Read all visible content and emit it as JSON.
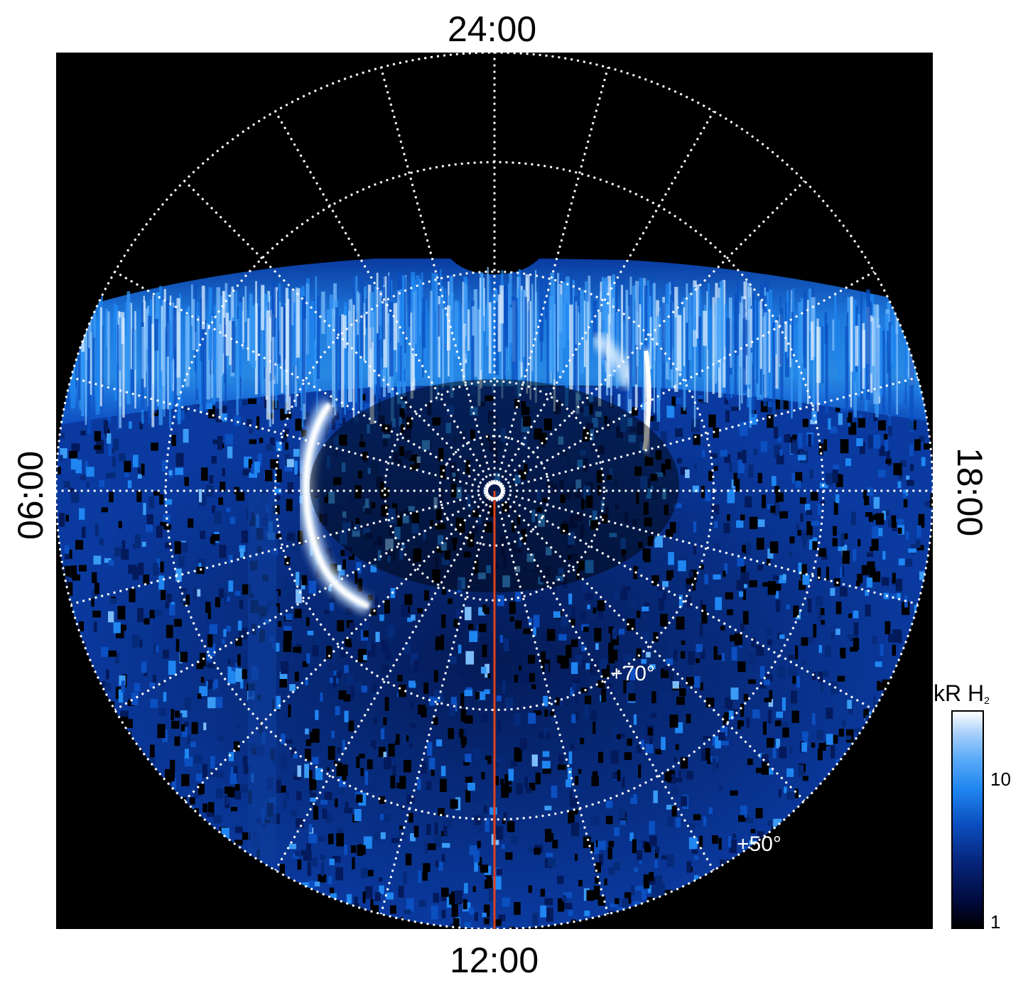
{
  "image": {
    "kind": "polar projection of auroral emission",
    "local_time_labels": {
      "top": "24:00",
      "bottom": "12:00",
      "left": "06:00",
      "right": "18:00"
    },
    "latitude_labels": [
      "+70°",
      "+50°"
    ],
    "colorbar": {
      "title_main": "kR H",
      "title_sub": "2",
      "ticks": [
        "10",
        "1"
      ],
      "scale": "log",
      "range": [
        1,
        30
      ]
    },
    "colors": {
      "background": "#000000",
      "emission_dim": "#062a7a",
      "emission_mid": "#1f85f0",
      "emission_bright": "#ffffff",
      "meridian_line": "#e0421c",
      "grid": "#ffffff"
    }
  }
}
